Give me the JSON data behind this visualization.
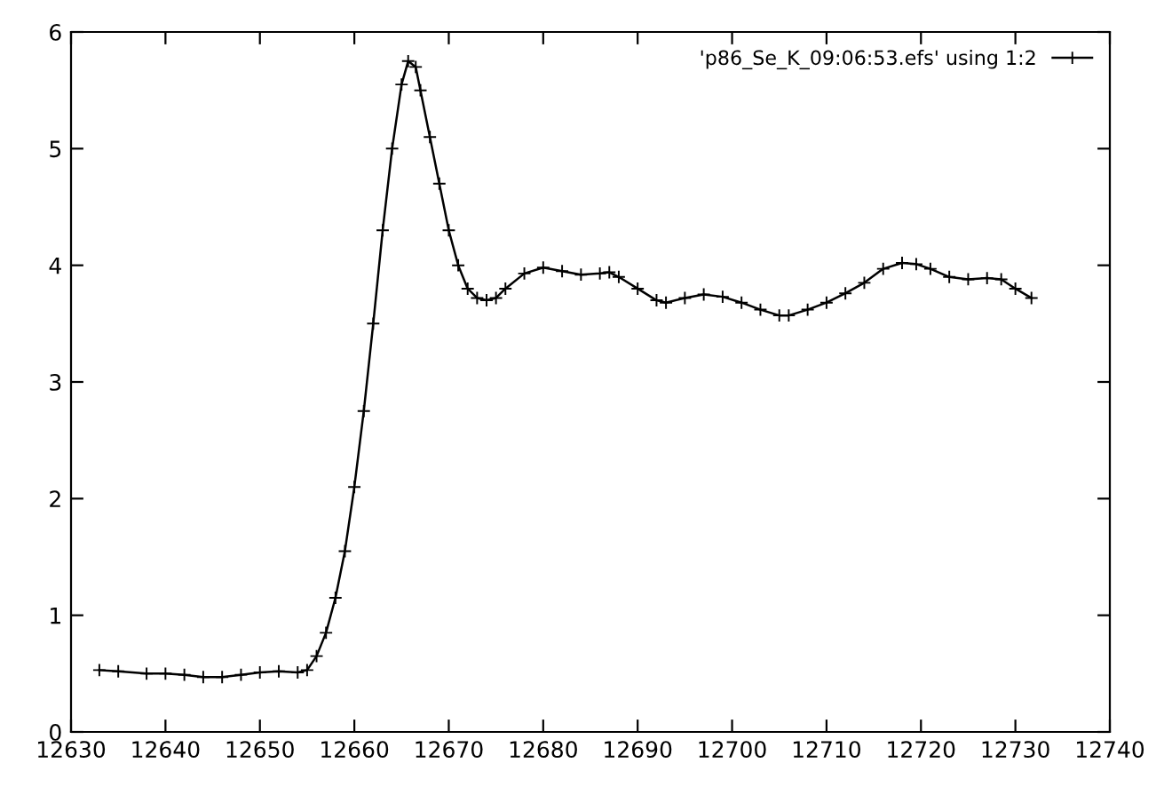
{
  "chart_data": {
    "type": "line",
    "xlim": [
      12630,
      12740
    ],
    "xticks": [
      12630,
      12640,
      12650,
      12660,
      12670,
      12680,
      12690,
      12700,
      12710,
      12720,
      12730,
      12740
    ],
    "ylim": [
      0,
      6
    ],
    "yticks": [
      0,
      1,
      2,
      3,
      4,
      5,
      6
    ],
    "grid": false,
    "legend": "top right",
    "marker": "cross",
    "line_style": "solid",
    "series": [
      {
        "name": "'p86_Se_K_09:06:53.efs' using 1:2",
        "color": "#000000",
        "x": [
          12633,
          12635,
          12638,
          12640,
          12642,
          12644,
          12646,
          12648,
          12650,
          12652,
          12654,
          12655,
          12656,
          12657,
          12658,
          12659,
          12660,
          12661,
          12662,
          12663,
          12664,
          12665,
          12665.7,
          12666.5,
          12667,
          12668,
          12669,
          12670,
          12671,
          12672,
          12673,
          12674,
          12675,
          12676,
          12678,
          12680,
          12682,
          12684,
          12686,
          12687,
          12688,
          12690,
          12692,
          12693,
          12695,
          12697,
          12699,
          12701,
          12703,
          12705,
          12706,
          12708,
          12710,
          12712,
          12714,
          12716,
          12718,
          12719.5,
          12721,
          12723,
          12725,
          12727,
          12728.5,
          12730,
          12731.7
        ],
        "values": [
          0.53,
          0.52,
          0.5,
          0.5,
          0.49,
          0.47,
          0.47,
          0.49,
          0.51,
          0.52,
          0.51,
          0.53,
          0.65,
          0.85,
          1.15,
          1.55,
          2.1,
          2.75,
          3.5,
          4.3,
          5.0,
          5.55,
          5.75,
          5.7,
          5.5,
          5.1,
          4.7,
          4.3,
          4.0,
          3.8,
          3.72,
          3.7,
          3.72,
          3.8,
          3.93,
          3.98,
          3.95,
          3.92,
          3.93,
          3.94,
          3.9,
          3.8,
          3.7,
          3.68,
          3.72,
          3.75,
          3.73,
          3.68,
          3.62,
          3.57,
          3.57,
          3.62,
          3.68,
          3.76,
          3.85,
          3.97,
          4.02,
          4.01,
          3.97,
          3.9,
          3.88,
          3.89,
          3.88,
          3.8,
          3.72
        ]
      }
    ]
  }
}
